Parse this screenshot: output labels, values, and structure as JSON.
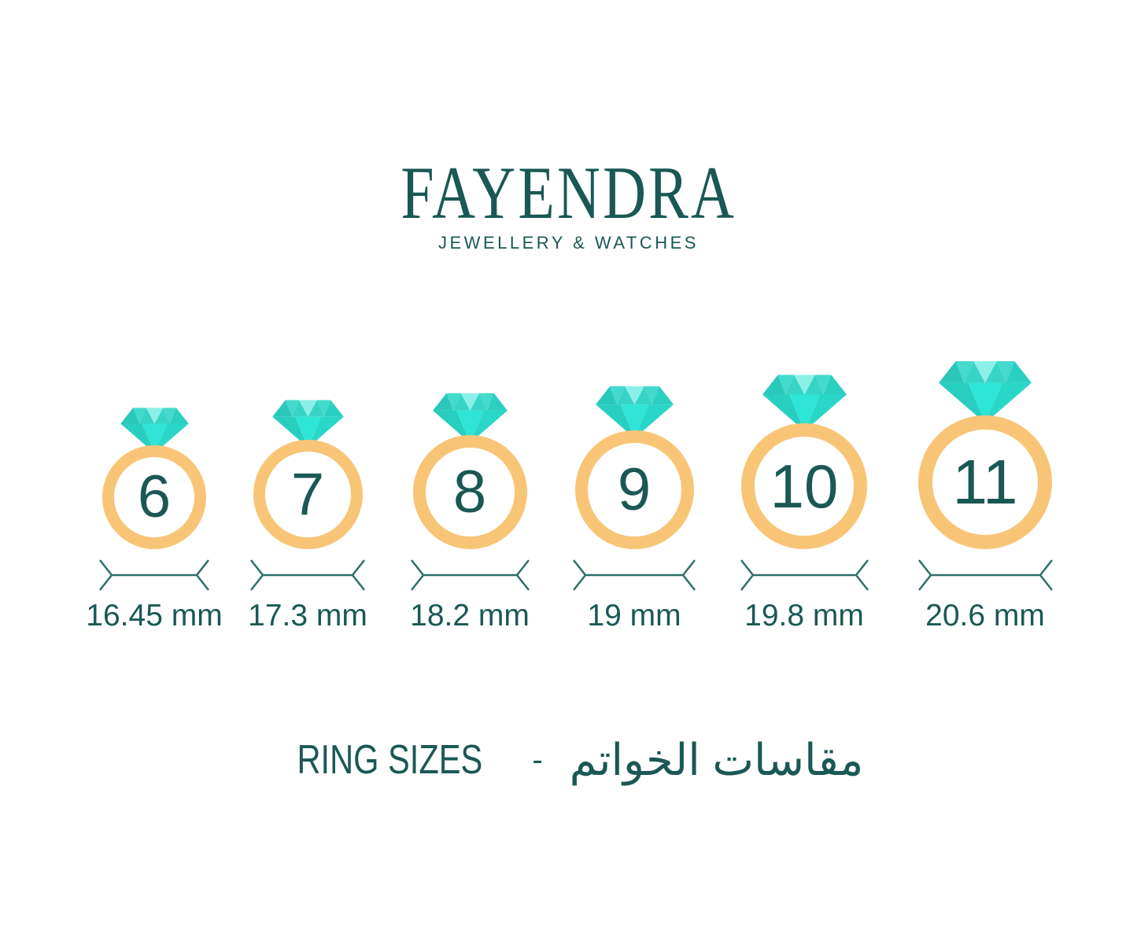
{
  "brand": {
    "name": "FAYENDRA",
    "tagline": "JEWELLERY & WATCHES"
  },
  "rings": [
    {
      "size": "6",
      "diameter": "16.45 mm"
    },
    {
      "size": "7",
      "diameter": "17.3 mm"
    },
    {
      "size": "8",
      "diameter": "18.2 mm"
    },
    {
      "size": "9",
      "diameter": "19 mm"
    },
    {
      "size": "10",
      "diameter": "19.8 mm"
    },
    {
      "size": "11",
      "diameter": "20.6 mm"
    }
  ],
  "footer": {
    "title_en": "RING SIZES",
    "separator": "-",
    "title_ar": "مقاسات الخواتم"
  },
  "colors": {
    "teal_text": "#1A5854",
    "line_teal": "#2F6F6A",
    "band_orange": "#F8C577",
    "diamond_corner_left": "#2AC8BB",
    "diamond_flank": "#44DACD",
    "diamond_light": "#8CF0E8",
    "diamond_flank_right": "#38D4C7",
    "diamond_corner_right": "#2BCFC2",
    "diamond_pavilion_left": "#28CEC0",
    "diamond_pavilion_center": "#2FE5D7",
    "diamond_pavilion_right": "#2AD6C8"
  }
}
